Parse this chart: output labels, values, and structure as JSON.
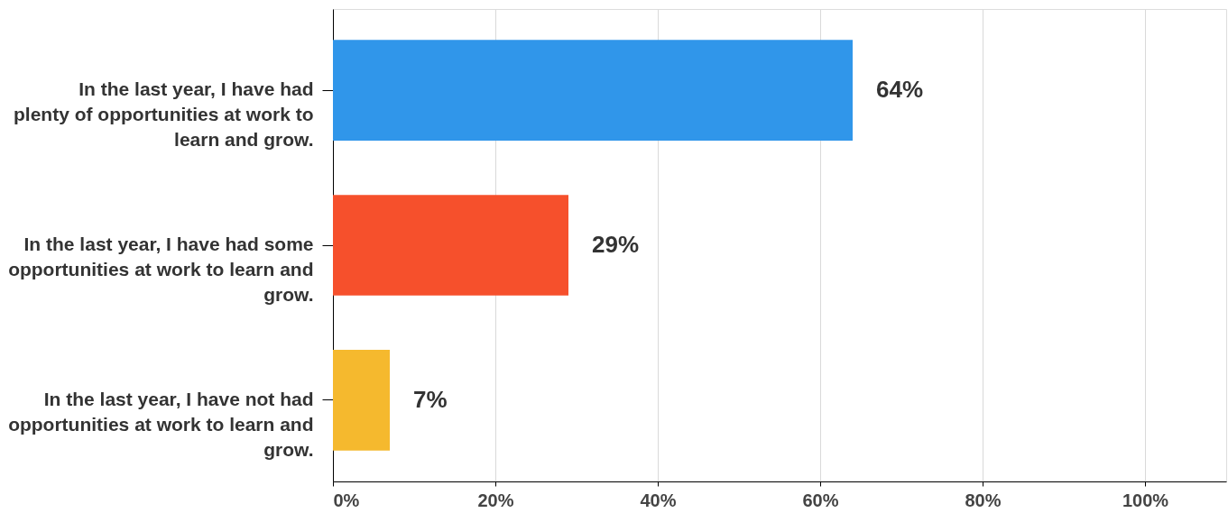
{
  "chart_data": {
    "type": "bar",
    "orientation": "horizontal",
    "categories": [
      "In the last year, I have had plenty of opportunities at work to learn and grow.",
      "In the last year, I have had some opportunities at work to learn and grow.",
      "In the last year, I have not had opportunities at work to learn and grow."
    ],
    "values": [
      64,
      29,
      7
    ],
    "colors": [
      "#3096ea",
      "#f6502c",
      "#f5b92e"
    ],
    "value_labels": [
      "64%",
      "29%",
      "7%"
    ],
    "xlim": [
      0,
      110
    ],
    "xticks": [
      {
        "value": 0,
        "label": "0%"
      },
      {
        "value": 20,
        "label": "20%"
      },
      {
        "value": 40,
        "label": "40%"
      },
      {
        "value": 60,
        "label": "60%"
      },
      {
        "value": 80,
        "label": "80%"
      },
      {
        "value": 100,
        "label": "100%"
      }
    ],
    "grid": "x",
    "legend": false
  }
}
